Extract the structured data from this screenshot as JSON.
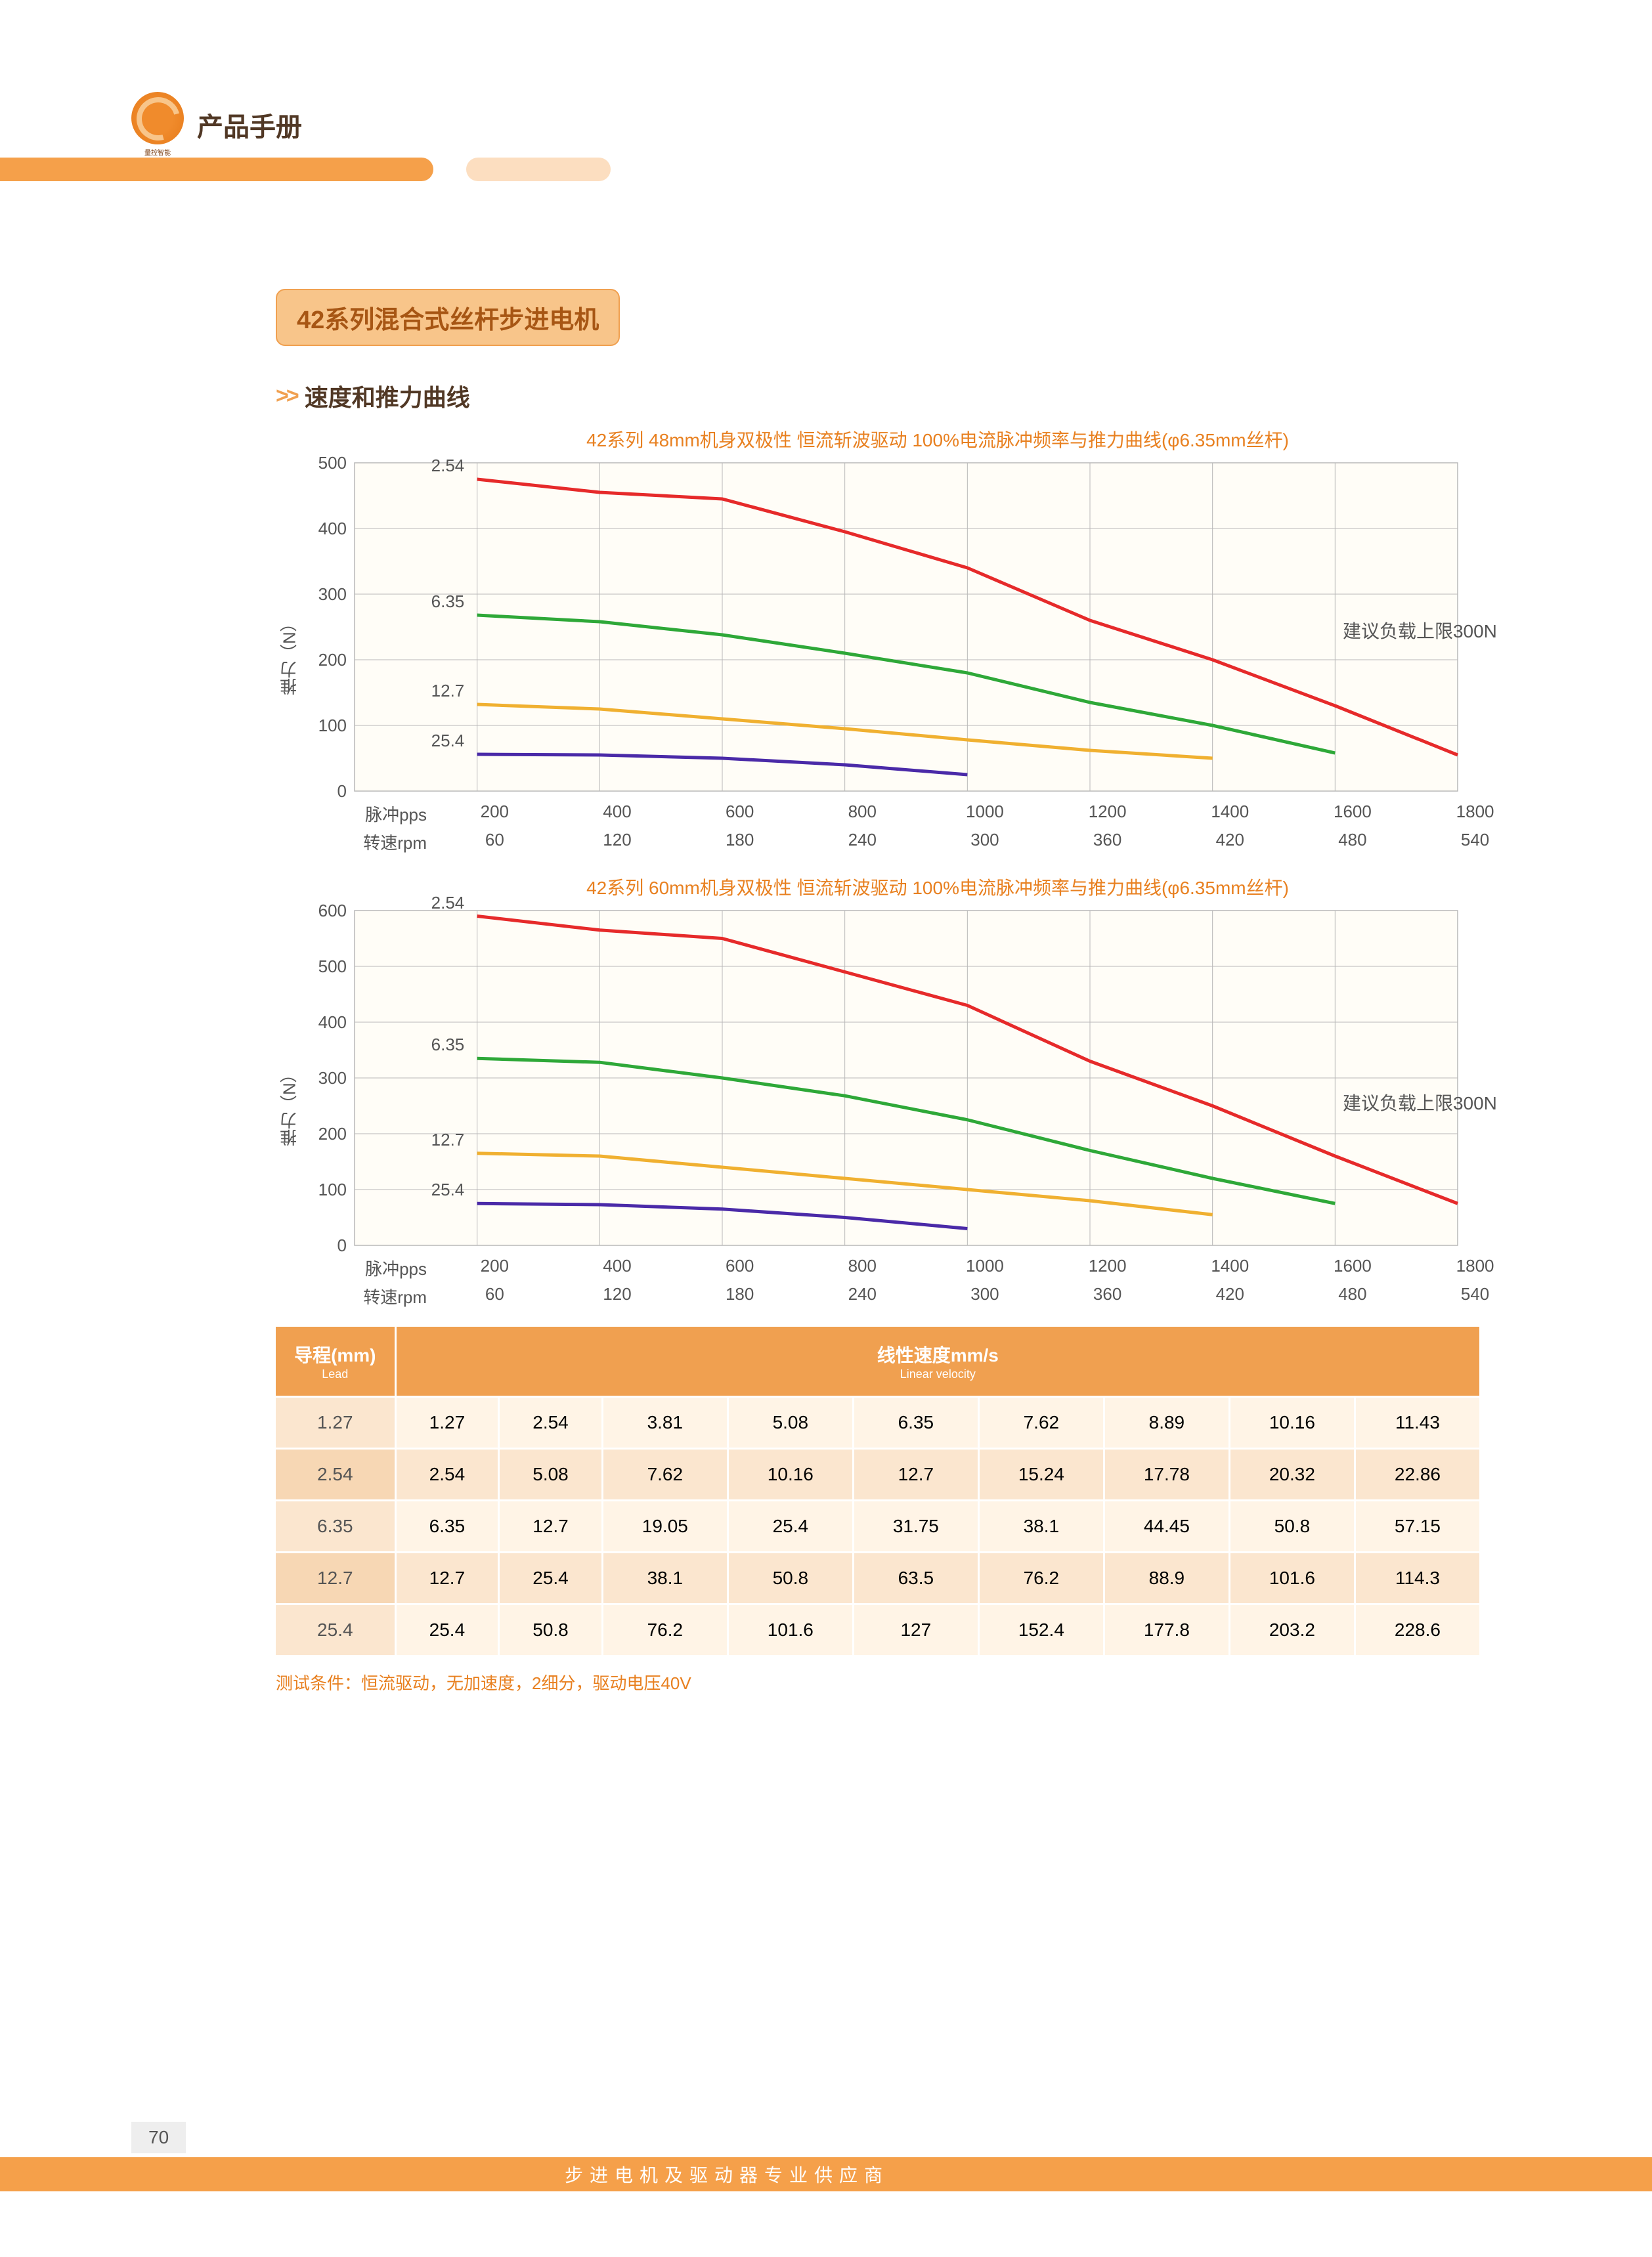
{
  "header": {
    "title": "产品手册",
    "logo_sub": "量控智能"
  },
  "tag_title": "42系列混合式丝杆步进电机",
  "chevron": ">>",
  "sub_title": "速度和推力曲线",
  "chart1": {
    "type": "line",
    "subtitle": "42系列 48mm机身双极性 恒流斩波驱动 100%电流脉冲频率与推力曲线(φ6.35mm丝杆)",
    "y_label": "推力（N）",
    "y_ticks": [
      0,
      100,
      200,
      300,
      400,
      500
    ],
    "ylim": [
      0,
      500
    ],
    "x_pps": [
      200,
      400,
      600,
      800,
      1000,
      1200,
      1400,
      1600,
      1800
    ],
    "x_rpm": [
      60,
      120,
      180,
      240,
      300,
      360,
      420,
      480,
      540
    ],
    "x_label_pps": "脉冲pps",
    "x_label_rpm": "转速rpm",
    "series": [
      {
        "label": "2.54",
        "color": "#e62a2a",
        "values": [
          475,
          455,
          445,
          395,
          340,
          260,
          200,
          130,
          55
        ]
      },
      {
        "label": "6.35",
        "color": "#2ea838",
        "values": [
          268,
          258,
          238,
          210,
          180,
          135,
          100,
          58,
          null
        ]
      },
      {
        "label": "12.7",
        "color": "#f0b030",
        "values": [
          132,
          125,
          110,
          95,
          78,
          62,
          50,
          null,
          null
        ]
      },
      {
        "label": "25.4",
        "color": "#4a2aa8",
        "values": [
          56,
          55,
          50,
          40,
          25,
          null,
          null,
          null,
          null
        ]
      }
    ],
    "load_note": "建议负载上限300N",
    "grid_color": "#b8b8b8",
    "background_color": "#fffdf7",
    "line_width": 5
  },
  "chart2": {
    "type": "line",
    "subtitle": "42系列 60mm机身双极性 恒流斩波驱动 100%电流脉冲频率与推力曲线(φ6.35mm丝杆)",
    "y_label": "推力（N）",
    "y_ticks": [
      0,
      100,
      200,
      300,
      400,
      500,
      600
    ],
    "ylim": [
      0,
      600
    ],
    "x_pps": [
      200,
      400,
      600,
      800,
      1000,
      1200,
      1400,
      1600,
      1800
    ],
    "x_rpm": [
      60,
      120,
      180,
      240,
      300,
      360,
      420,
      480,
      540
    ],
    "x_label_pps": "脉冲pps",
    "x_label_rpm": "转速rpm",
    "series": [
      {
        "label": "2.54",
        "color": "#e62a2a",
        "values": [
          590,
          565,
          550,
          490,
          430,
          330,
          250,
          160,
          75
        ]
      },
      {
        "label": "6.35",
        "color": "#2ea838",
        "values": [
          335,
          328,
          300,
          268,
          225,
          170,
          120,
          75,
          null
        ]
      },
      {
        "label": "12.7",
        "color": "#f0b030",
        "values": [
          165,
          160,
          140,
          120,
          100,
          80,
          55,
          null,
          null
        ]
      },
      {
        "label": "25.4",
        "color": "#4a2aa8",
        "values": [
          75,
          73,
          65,
          50,
          30,
          null,
          null,
          null,
          null
        ]
      }
    ],
    "load_note": "建议负载上限300N",
    "grid_color": "#b8b8b8",
    "background_color": "#fffdf7",
    "line_width": 5
  },
  "table": {
    "lead_header": "导程(mm)",
    "lead_sub": "Lead",
    "velocity_header": "线性速度mm/s",
    "velocity_sub": "Linear velocity",
    "rows": [
      {
        "lead": "1.27",
        "cells": [
          "1.27",
          "2.54",
          "3.81",
          "5.08",
          "6.35",
          "7.62",
          "8.89",
          "10.16",
          "11.43"
        ]
      },
      {
        "lead": "2.54",
        "cells": [
          "2.54",
          "5.08",
          "7.62",
          "10.16",
          "12.7",
          "15.24",
          "17.78",
          "20.32",
          "22.86"
        ]
      },
      {
        "lead": "6.35",
        "cells": [
          "6.35",
          "12.7",
          "19.05",
          "25.4",
          "31.75",
          "38.1",
          "44.45",
          "50.8",
          "57.15"
        ]
      },
      {
        "lead": "12.7",
        "cells": [
          "12.7",
          "25.4",
          "38.1",
          "50.8",
          "63.5",
          "76.2",
          "88.9",
          "101.6",
          "114.3"
        ]
      },
      {
        "lead": "25.4",
        "cells": [
          "25.4",
          "50.8",
          "76.2",
          "101.6",
          "127",
          "152.4",
          "177.8",
          "203.2",
          "228.6"
        ]
      }
    ]
  },
  "test_note": "测试条件：恒流驱动，无加速度，2细分，驱动电压40V",
  "footer": {
    "page_num": "70",
    "text": "步进电机及驱动器专业供应商"
  }
}
